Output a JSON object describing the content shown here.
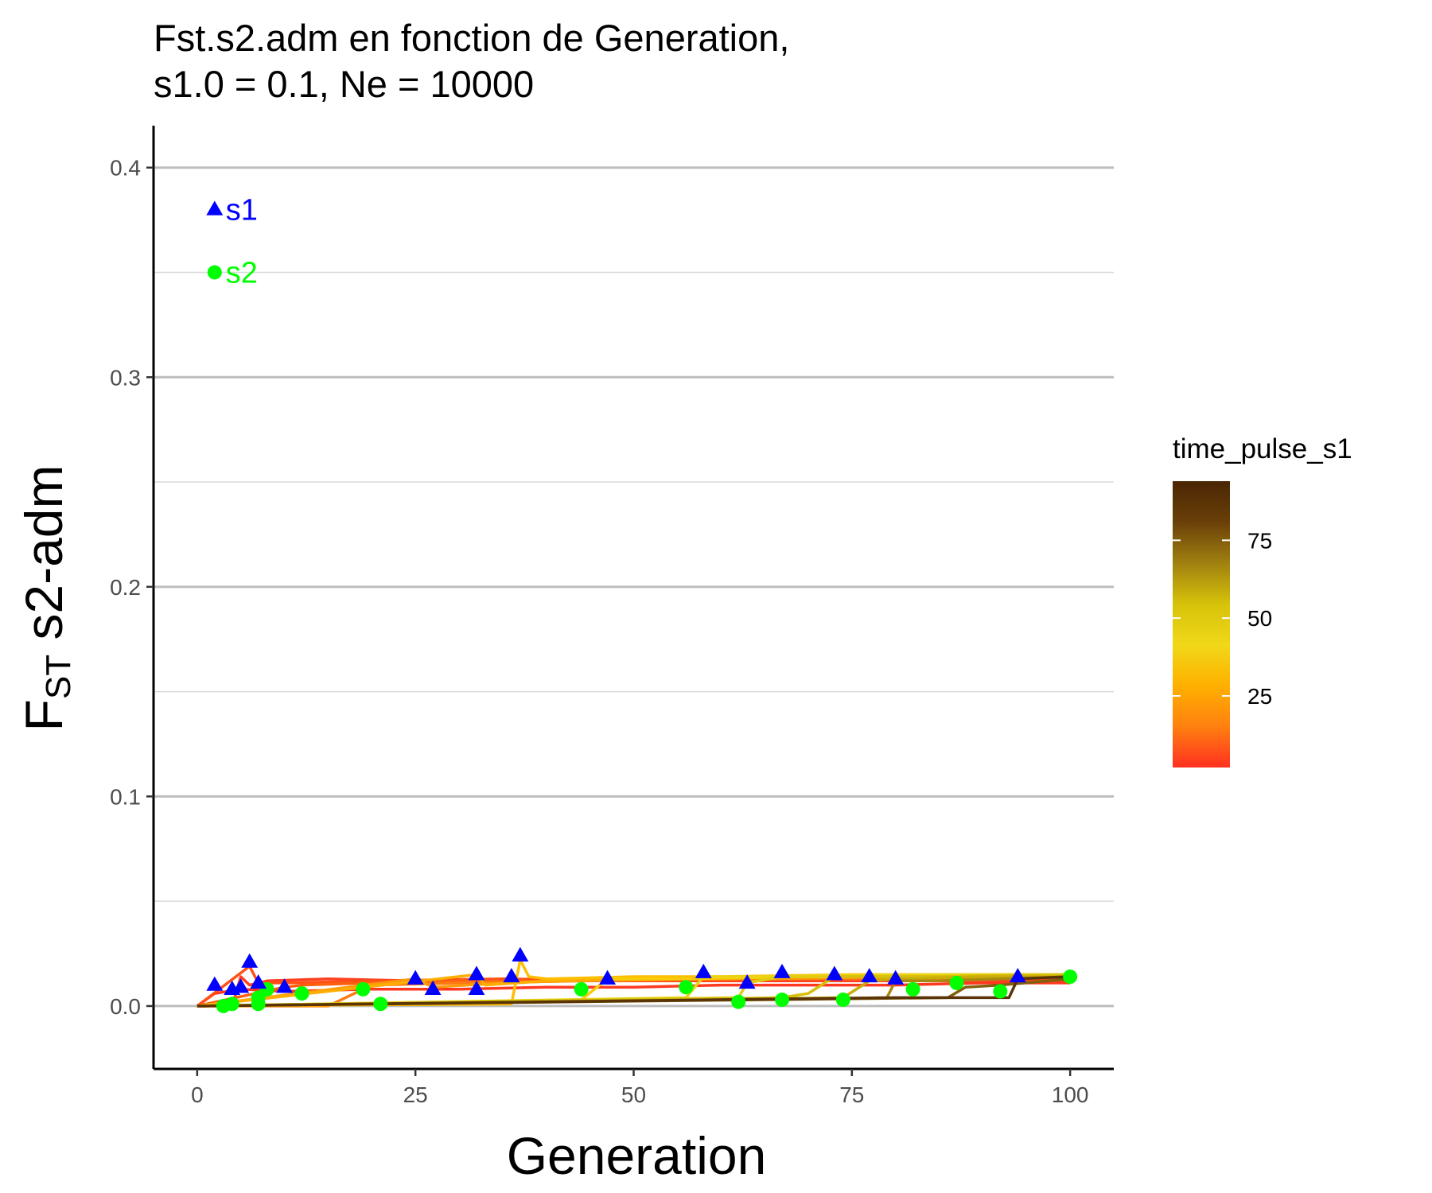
{
  "chart_data": {
    "type": "line",
    "title_lines": [
      "Fst.s2.adm en fonction de Generation,",
      "s1.0 = 0.1, Ne = 10000"
    ],
    "xlabel": "Generation",
    "ylabel_main": "F",
    "ylabel_sub": "ST",
    "ylabel_rest": " s2-adm",
    "xlim": [
      -5,
      105
    ],
    "ylim": [
      -0.03,
      0.42
    ],
    "xticks": [
      0,
      25,
      50,
      75,
      100
    ],
    "xtick_labels": [
      "0",
      "25",
      "50",
      "75",
      "100"
    ],
    "yticks": [
      0.0,
      0.1,
      0.2,
      0.3,
      0.4
    ],
    "ytick_labels": [
      "0.0",
      "0.1",
      "0.2",
      "0.3",
      "0.4"
    ],
    "ygrid_minor": [
      0.05,
      0.15,
      0.25,
      0.35
    ],
    "grid": "horizontal",
    "legend": {
      "title": "time_pulse_s1",
      "type": "colorbar",
      "placement": "right",
      "range": [
        2,
        94
      ],
      "ticks": [
        25,
        50,
        75
      ],
      "tick_labels": [
        "25",
        "50",
        "75"
      ],
      "colors": [
        "#ff3020",
        "#ff8010",
        "#ffb000",
        "#f0d818",
        "#d6c20a",
        "#a08010",
        "#6a4008",
        "#4a2604"
      ]
    },
    "series": [
      {
        "pulse": 2,
        "color": "#ff3820",
        "x": [
          0,
          2,
          5,
          10,
          20,
          30,
          40,
          50,
          60,
          70,
          80,
          90,
          100
        ],
        "y": [
          0,
          0.006,
          0.008,
          0.007,
          0.008,
          0.008,
          0.009,
          0.009,
          0.01,
          0.01,
          0.01,
          0.011,
          0.011
        ]
      },
      {
        "pulse": 4,
        "color": "#ff4020",
        "x": [
          0,
          4,
          5,
          6,
          8,
          15,
          25,
          40,
          60,
          80,
          100
        ],
        "y": [
          0,
          0.0,
          0.014,
          0.01,
          0.012,
          0.013,
          0.012,
          0.012,
          0.012,
          0.012,
          0.012
        ]
      },
      {
        "pulse": 6,
        "color": "#ff5018",
        "x": [
          0,
          6,
          7,
          10,
          20,
          35,
          50,
          70,
          100
        ],
        "y": [
          0,
          0.019,
          0.011,
          0.011,
          0.012,
          0.013,
          0.012,
          0.013,
          0.013
        ]
      },
      {
        "pulse": 10,
        "color": "#ff6010",
        "x": [
          0,
          10,
          12,
          20,
          30,
          45,
          60,
          80,
          100
        ],
        "y": [
          0,
          0.009,
          0.01,
          0.011,
          0.012,
          0.012,
          0.013,
          0.013,
          0.014
        ]
      },
      {
        "pulse": 15,
        "color": "#ff7a10",
        "x": [
          0,
          15,
          20,
          30,
          45,
          60,
          80,
          100
        ],
        "y": [
          0,
          0.0,
          0.01,
          0.011,
          0.012,
          0.013,
          0.013,
          0.014
        ]
      },
      {
        "pulse": 25,
        "color": "#ff9a08",
        "x": [
          0,
          25,
          27,
          35,
          50,
          65,
          80,
          100
        ],
        "y": [
          0,
          0.013,
          0.009,
          0.011,
          0.013,
          0.013,
          0.014,
          0.014
        ]
      },
      {
        "pulse": 32,
        "color": "#ffae00",
        "x": [
          0,
          32,
          33,
          40,
          55,
          70,
          85,
          100
        ],
        "y": [
          0,
          0.015,
          0.01,
          0.012,
          0.013,
          0.014,
          0.014,
          0.015
        ]
      },
      {
        "pulse": 37,
        "color": "#ffbe00",
        "x": [
          0,
          36,
          37,
          38,
          40,
          50,
          60,
          75,
          90,
          100
        ],
        "y": [
          0,
          0.001,
          0.022,
          0.014,
          0.013,
          0.014,
          0.014,
          0.015,
          0.015,
          0.015
        ]
      },
      {
        "pulse": 44,
        "color": "#f8cc08",
        "x": [
          0,
          44,
          47,
          55,
          70,
          85,
          100
        ],
        "y": [
          0,
          0.003,
          0.013,
          0.013,
          0.014,
          0.015,
          0.015
        ]
      },
      {
        "pulse": 56,
        "color": "#ecd414",
        "x": [
          0,
          56,
          58,
          65,
          80,
          100
        ],
        "y": [
          0,
          0.004,
          0.014,
          0.014,
          0.015,
          0.015
        ]
      },
      {
        "pulse": 63,
        "color": "#e0cc10",
        "x": [
          0,
          62,
          63,
          67,
          80,
          100
        ],
        "y": [
          0,
          0.004,
          0.011,
          0.014,
          0.014,
          0.015
        ]
      },
      {
        "pulse": 67,
        "color": "#d6c00c",
        "x": [
          0,
          67,
          70,
          73,
          85,
          100
        ],
        "y": [
          0,
          0.004,
          0.006,
          0.014,
          0.014,
          0.015
        ]
      },
      {
        "pulse": 74,
        "color": "#c8ae08",
        "x": [
          0,
          74,
          77,
          80,
          90,
          100
        ],
        "y": [
          0,
          0.004,
          0.012,
          0.013,
          0.014,
          0.014
        ]
      },
      {
        "pulse": 80,
        "color": "#a88a10",
        "x": [
          0,
          79,
          80,
          85,
          100
        ],
        "y": [
          0,
          0.004,
          0.012,
          0.012,
          0.014
        ]
      },
      {
        "pulse": 87,
        "color": "#80600c",
        "x": [
          0,
          86,
          88,
          92,
          100
        ],
        "y": [
          0,
          0.004,
          0.009,
          0.01,
          0.013
        ]
      },
      {
        "pulse": 94,
        "color": "#5a3406",
        "x": [
          0,
          40,
          60,
          80,
          93,
          94,
          100
        ],
        "y": [
          0,
          0.002,
          0.003,
          0.004,
          0.004,
          0.013,
          0.014
        ]
      }
    ],
    "s1_points": {
      "label": "s1",
      "color": "#0000ff",
      "marker": "triangle",
      "x": [
        2,
        4,
        5,
        6,
        7,
        10,
        25,
        27,
        32,
        32,
        36,
        37,
        47,
        58,
        63,
        67,
        73,
        77,
        80,
        94
      ],
      "y": [
        0.01,
        0.008,
        0.009,
        0.021,
        0.011,
        0.009,
        0.013,
        0.008,
        0.015,
        0.008,
        0.014,
        0.024,
        0.013,
        0.016,
        0.011,
        0.016,
        0.015,
        0.014,
        0.013,
        0.014
      ]
    },
    "s2_points": {
      "label": "s2",
      "color": "#00ff00",
      "marker": "circle",
      "x": [
        3,
        4,
        7,
        7,
        8,
        12,
        19,
        21,
        44,
        56,
        62,
        67,
        74,
        82,
        87,
        92,
        100
      ],
      "y": [
        0.0,
        0.001,
        0.004,
        0.001,
        0.008,
        0.006,
        0.008,
        0.001,
        0.008,
        0.009,
        0.002,
        0.003,
        0.003,
        0.008,
        0.011,
        0.007,
        0.014
      ]
    },
    "annotations": [
      {
        "label": "s1",
        "x": 2,
        "y": 0.38,
        "color": "#0000ff",
        "marker": "triangle"
      },
      {
        "label": "s2",
        "x": 2,
        "y": 0.35,
        "color": "#00ff00",
        "marker": "circle"
      }
    ]
  }
}
